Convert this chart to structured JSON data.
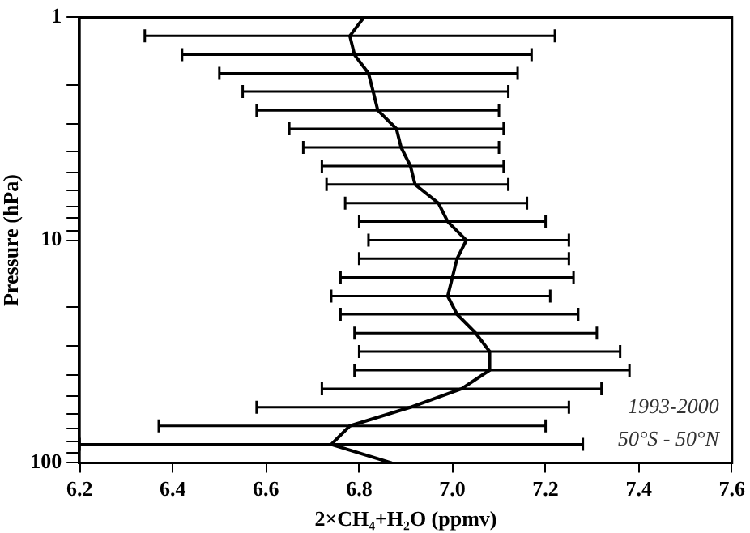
{
  "chart_data": {
    "type": "line",
    "xlabel": "2×CH₄+H₂O (ppmv)",
    "ylabel": "Pressure (hPa)",
    "annotations": [
      "1993-2000",
      "50°S - 50°N"
    ],
    "xlim": [
      6.2,
      7.6
    ],
    "xticks": [
      6.2,
      6.4,
      6.6,
      6.8,
      {
        "value": 7,
        "label": "7.0"
      },
      7.2,
      7.4,
      7.6
    ],
    "ylim": [
      100,
      1
    ],
    "yticks": [
      1,
      {
        "value": 2,
        "label": null
      },
      {
        "value": 3,
        "label": null
      },
      {
        "value": 4,
        "label": null
      },
      {
        "value": 5,
        "label": null
      },
      {
        "value": 6,
        "label": null
      },
      {
        "value": 7,
        "label": null
      },
      {
        "value": 8,
        "label": null
      },
      {
        "value": 9,
        "label": null
      },
      10,
      {
        "value": 20,
        "label": null
      },
      {
        "value": 30,
        "label": null
      },
      {
        "value": 40,
        "label": null
      },
      {
        "value": 50,
        "label": null
      },
      {
        "value": 60,
        "label": null
      },
      {
        "value": 70,
        "label": null
      },
      {
        "value": 80,
        "label": null
      },
      {
        "value": 90,
        "label": null
      },
      100
    ],
    "log": "y",
    "grid": false,
    "legend": false,
    "marker": "none",
    "line_style": "solid",
    "series": [
      {
        "color": "#000000",
        "x": [
          6.81,
          6.78,
          6.79,
          6.82,
          6.83,
          6.84,
          6.88,
          6.89,
          6.91,
          6.92,
          6.97,
          6.99,
          7.03,
          7.01,
          7.0,
          6.99,
          7.01,
          7.05,
          7.08,
          7.08,
          7.02,
          6.91,
          6.78,
          6.74,
          6.87
        ],
        "values": [
          1,
          1.21,
          1.47,
          1.78,
          2.15,
          2.61,
          3.16,
          3.83,
          4.64,
          5.62,
          6.81,
          8.25,
          10,
          12.1,
          14.7,
          17.8,
          21.5,
          26.1,
          31.6,
          38.3,
          46.4,
          56.2,
          68.1,
          82.5,
          100
        ],
        "xerrors": [
          null,
          [
            6.34,
            7.22
          ],
          [
            6.42,
            7.17
          ],
          [
            6.5,
            7.14
          ],
          [
            6.55,
            7.12
          ],
          [
            6.58,
            7.1
          ],
          [
            6.65,
            7.11
          ],
          [
            6.68,
            7.1
          ],
          [
            6.72,
            7.11
          ],
          [
            6.73,
            7.12
          ],
          [
            6.77,
            7.16
          ],
          [
            6.8,
            7.2
          ],
          [
            6.82,
            7.25
          ],
          [
            6.8,
            7.25
          ],
          [
            6.76,
            7.26
          ],
          [
            6.74,
            7.21
          ],
          [
            6.76,
            7.27
          ],
          [
            6.79,
            7.31
          ],
          [
            6.8,
            7.36
          ],
          [
            6.79,
            7.38
          ],
          [
            6.72,
            7.32
          ],
          [
            6.58,
            7.25
          ],
          [
            6.37,
            7.2
          ],
          [
            6.2,
            7.28
          ],
          null
        ]
      }
    ]
  }
}
